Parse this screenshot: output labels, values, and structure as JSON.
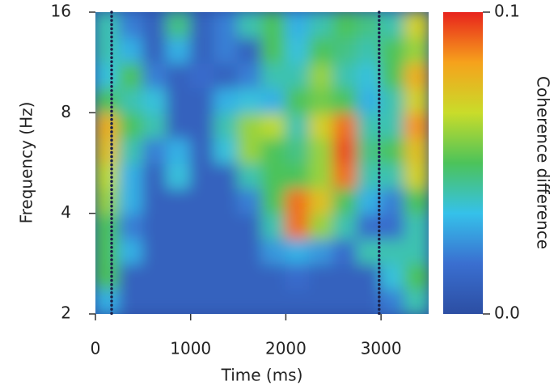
{
  "chart_data": {
    "type": "heatmap",
    "x_label": "Time (ms)",
    "y_label": "Frequency (Hz)",
    "colorbar_label": "Coherence difference",
    "xlim": [
      0,
      3500
    ],
    "xticks": [
      0,
      1000,
      2000,
      3000
    ],
    "ylim": [
      2,
      16
    ],
    "yticks": [
      2,
      4,
      8,
      16
    ],
    "y_log": true,
    "clim": [
      0,
      0.1
    ],
    "cticks": [
      {
        "value": 0,
        "label": "0.0"
      },
      0.1
    ],
    "colormap": [
      "#2c4ea3",
      "#3a6fd0",
      "#35c1ea",
      "#4cc35a",
      "#c9dc2a",
      "#f6a21c",
      "#e8231c"
    ],
    "vlines": [
      170,
      2980
    ],
    "x_bins": [
      0,
      250,
      500,
      750,
      1000,
      1250,
      1500,
      1750,
      2000,
      2250,
      2500,
      2750,
      3000,
      3250,
      3500
    ],
    "y_bins": [
      2,
      2.38,
      2.83,
      3.36,
      4,
      4.76,
      5.66,
      6.73,
      8,
      9.51,
      11.3,
      13.45,
      16
    ],
    "z": [
      [
        0.03,
        0.01,
        0.01,
        0.01,
        0.01,
        0.01,
        0.01,
        0.01,
        0.01,
        0.01,
        0.01,
        0.01,
        0.02,
        0.04
      ],
      [
        0.05,
        0.01,
        0.01,
        0.01,
        0.01,
        0.01,
        0.01,
        0.01,
        0.015,
        0.01,
        0.01,
        0.01,
        0.035,
        0.05
      ],
      [
        0.05,
        0.03,
        0.01,
        0.01,
        0.01,
        0.01,
        0.01,
        0.025,
        0.03,
        0.025,
        0.015,
        0.04,
        0.04,
        0.04
      ],
      [
        0.05,
        0.02,
        0.01,
        0.01,
        0.01,
        0.01,
        0.01,
        0.04,
        0.09,
        0.06,
        0.04,
        0.015,
        0.015,
        0.04
      ],
      [
        0.06,
        0.03,
        0.01,
        0.01,
        0.01,
        0.01,
        0.02,
        0.05,
        0.09,
        0.075,
        0.05,
        0.03,
        0.02,
        0.05
      ],
      [
        0.065,
        0.03,
        0.01,
        0.035,
        0.01,
        0.01,
        0.04,
        0.05,
        0.05,
        0.06,
        0.09,
        0.04,
        0.04,
        0.07
      ],
      [
        0.075,
        0.04,
        0.02,
        0.03,
        0.01,
        0.035,
        0.06,
        0.05,
        0.045,
        0.06,
        0.095,
        0.045,
        0.05,
        0.075
      ],
      [
        0.08,
        0.05,
        0.04,
        0.01,
        0.01,
        0.04,
        0.06,
        0.065,
        0.04,
        0.07,
        0.09,
        0.04,
        0.04,
        0.085
      ],
      [
        0.05,
        0.04,
        0.035,
        0.01,
        0.01,
        0.03,
        0.035,
        0.03,
        0.05,
        0.055,
        0.05,
        0.03,
        0.04,
        0.07
      ],
      [
        0.035,
        0.05,
        0.02,
        0.01,
        0.015,
        0.01,
        0.02,
        0.04,
        0.04,
        0.06,
        0.04,
        0.035,
        0.05,
        0.08
      ],
      [
        0.04,
        0.03,
        0.01,
        0.03,
        0.01,
        0.02,
        0.01,
        0.05,
        0.035,
        0.05,
        0.045,
        0.04,
        0.05,
        0.06
      ],
      [
        0.04,
        0.02,
        0.01,
        0.045,
        0.01,
        0.02,
        0.04,
        0.05,
        0.03,
        0.04,
        0.05,
        0.045,
        0.04,
        0.07
      ]
    ]
  }
}
